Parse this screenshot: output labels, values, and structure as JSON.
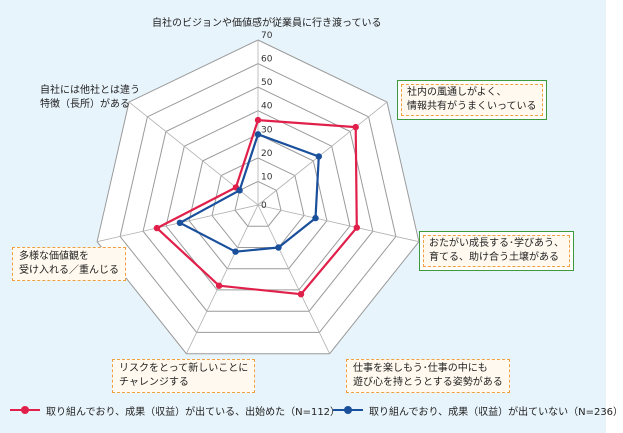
{
  "chart_data": {
    "type": "radar",
    "axes": [
      "自社のビジョンや価値感が従業員に行き渡っている",
      "社内の風通しがよく、情報共有がうまくいっている",
      "おたがい成長する・学びあう、育てる、助け合う土壌がある",
      "仕事を楽しもう・仕事の中にも遊び心を持とうとする姿勢がある",
      "リスクをとって新しいことにチャレンジする",
      "多様な価値観を受け入れる／重んじる",
      "自社には他社とは違う特徴（長所）がある"
    ],
    "axis_label_lines": [
      [
        "自社のビジョンや価値感が従業員に行き渡っている"
      ],
      [
        "社内の風通しがよく、",
        "情報共有がうまくいっている"
      ],
      [
        "おたがい成長する･学びあう、",
        "育てる、助け合う土壌がある"
      ],
      [
        "仕事を楽しもう･仕事の中にも",
        "遊び心を持とうとする姿勢がある"
      ],
      [
        "リスクをとって新しいことに",
        "チャレンジする"
      ],
      [
        "多様な価値観を",
        "受け入れる／重んじる"
      ],
      [
        "自社には他社とは違う",
        "特徴（長所）がある"
      ]
    ],
    "ticks": [
      0,
      10,
      20,
      30,
      40,
      50,
      60,
      70
    ],
    "tick_labels": [
      "0",
      "10",
      "20",
      "30",
      "40",
      "50",
      "60",
      "70"
    ],
    "range": [
      0,
      70
    ],
    "series": [
      {
        "name": "取り組んでおり、成果（収益）が出ている、出始めた（N=112）",
        "color": "#e0204a",
        "values": [
          36,
          53,
          43,
          42,
          38,
          44,
          12
        ]
      },
      {
        "name": "取り組んでおり、成果（収益）が出ていない（N=236）",
        "color": "#1a4f9c",
        "values": [
          30,
          33,
          25,
          20,
          22,
          34,
          10
        ]
      }
    ],
    "legend_position": "bottom"
  }
}
